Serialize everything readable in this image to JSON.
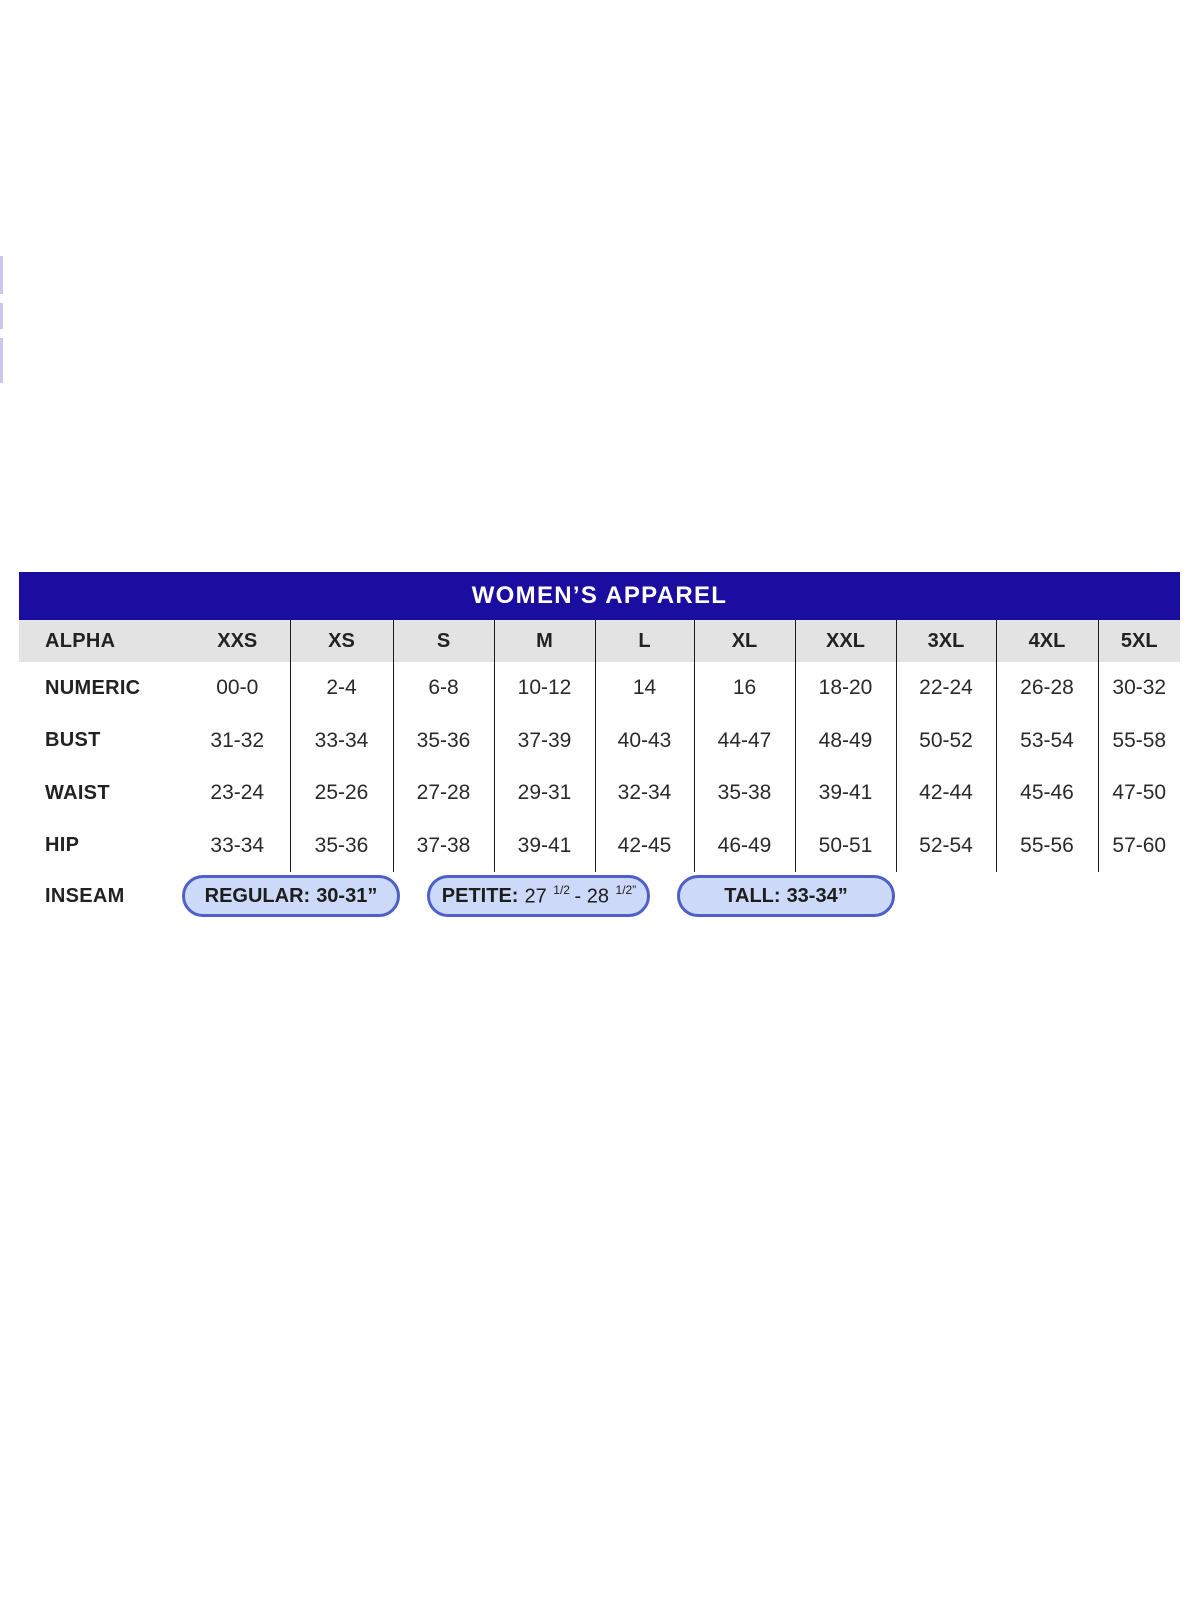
{
  "table": {
    "title": "WOMEN’S APPAREL",
    "title_bg": "#1b0da0",
    "title_color": "#ffffff",
    "header_bg": "#e3e3e3",
    "rule_color": "#1c1c1c",
    "columns": [
      "ALPHA",
      "XXS",
      "XS",
      "S",
      "M",
      "L",
      "XL",
      "XXL",
      "3XL",
      "4XL",
      "5XL"
    ],
    "rows": [
      {
        "label": "NUMERIC",
        "values": [
          "00-0",
          "2-4",
          "6-8",
          "10-12",
          "14",
          "16",
          "18-20",
          "22-24",
          "26-28",
          "30-32"
        ]
      },
      {
        "label": "BUST",
        "values": [
          "31-32",
          "33-34",
          "35-36",
          "37-39",
          "40-43",
          "44-47",
          "48-49",
          "50-52",
          "53-54",
          "55-58"
        ]
      },
      {
        "label": "WAIST",
        "values": [
          "23-24",
          "25-26",
          "27-28",
          "29-31",
          "32-34",
          "35-38",
          "39-41",
          "42-44",
          "45-46",
          "47-50"
        ]
      },
      {
        "label": "HIP",
        "values": [
          "33-34",
          "35-36",
          "37-38",
          "39-41",
          "42-45",
          "46-49",
          "50-51",
          "52-54",
          "55-56",
          "57-60"
        ]
      }
    ],
    "inseam": {
      "label": "INSEAM",
      "pill_bg": "#ccd9f8",
      "pill_border": "#4d60c9",
      "pills": [
        {
          "name": "regular",
          "label": "REGULAR:",
          "value": "30-31”"
        },
        {
          "name": "petite",
          "label": "PETITE:",
          "segments": [
            {
              "text": "27 "
            },
            {
              "sup": "1/2"
            },
            {
              "text": " - 28 "
            },
            {
              "sup": "1/2”"
            }
          ]
        },
        {
          "name": "tall",
          "label": "TALL:",
          "value": "33-34”"
        }
      ]
    }
  },
  "artifacts": {
    "left_edge_strip_color": "#cbc7ee"
  }
}
